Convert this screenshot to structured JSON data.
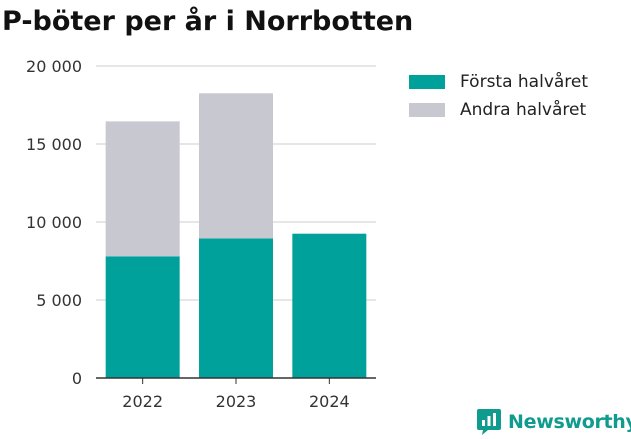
{
  "chart_data": {
    "type": "bar",
    "stacked": true,
    "title": "P-böter per år i Norrbotten",
    "categories": [
      "2022",
      "2023",
      "2024"
    ],
    "series": [
      {
        "name": "Första halvåret",
        "color": "#00a19a",
        "values": [
          7800,
          8950,
          9250
        ]
      },
      {
        "name": "Andra halvåret",
        "color": "#c8c8d0",
        "values": [
          8650,
          9300,
          0
        ]
      }
    ],
    "ylim": [
      0,
      20000
    ],
    "yticks": [
      0,
      5000,
      10000,
      15000,
      20000
    ],
    "ytick_labels": [
      "0",
      "5 000",
      "10 000",
      "15 000",
      "20 000"
    ],
    "grid": true,
    "legend_position": "top-right",
    "xlabel": "",
    "ylabel": ""
  },
  "brand": {
    "name": "Newsworthy",
    "icon": "newsworthy-logo-icon",
    "color": "#0f9b8e"
  }
}
